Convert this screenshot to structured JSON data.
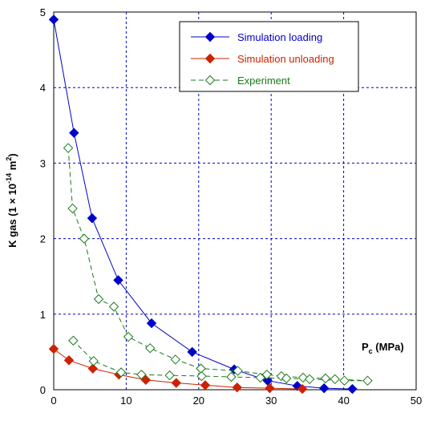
{
  "chart_data": {
    "type": "line",
    "x_axis": {
      "range": [
        0,
        50
      ],
      "ticks": [
        "0",
        "10",
        "20",
        "30",
        "40",
        "50"
      ],
      "label_main": "P",
      "label_sub": "c",
      "label_unit": " (MPa)"
    },
    "y_axis": {
      "range": [
        0,
        5
      ],
      "ticks": [
        "0",
        "1",
        "2",
        "3",
        "4",
        "5"
      ],
      "label_prefix": "K gas (1 × 10",
      "label_exp": "-14",
      "label_mid": " m",
      "label_exp2": "2",
      "label_suffix": ")"
    },
    "grid": true,
    "legend_position": "top-right",
    "series": [
      {
        "name": "Simulation loading",
        "color": "#0000cc",
        "marker": "diamond-filled",
        "line": "solid",
        "points": [
          [
            0,
            4.9
          ],
          [
            2.8,
            3.4
          ],
          [
            5.3,
            2.27
          ],
          [
            8.9,
            1.45
          ],
          [
            13.5,
            0.88
          ],
          [
            19.1,
            0.5
          ],
          [
            24.9,
            0.27
          ],
          [
            29.5,
            0.12
          ],
          [
            33.6,
            0.05
          ],
          [
            37.3,
            0.02
          ],
          [
            41.2,
            0.01
          ]
        ]
      },
      {
        "name": "Simulation unloading",
        "color": "#cc2200",
        "marker": "diamond-filled",
        "line": "solid",
        "points": [
          [
            0,
            0.54
          ],
          [
            2.1,
            0.39
          ],
          [
            5.4,
            0.28
          ],
          [
            9.0,
            0.2
          ],
          [
            12.7,
            0.13
          ],
          [
            16.9,
            0.09
          ],
          [
            20.9,
            0.06
          ],
          [
            25.3,
            0.03
          ],
          [
            29.8,
            0.02
          ],
          [
            34.3,
            0.01
          ]
        ]
      },
      {
        "name": "Experiment",
        "color": "#1a7a1a",
        "marker": "diamond-open",
        "line": "dashed",
        "points": [
          [
            2.0,
            3.2
          ],
          [
            2.6,
            2.4
          ],
          [
            4.2,
            2.0
          ],
          [
            6.2,
            1.2
          ],
          [
            8.3,
            1.1
          ],
          [
            10.3,
            0.7
          ],
          [
            13.3,
            0.55
          ],
          [
            16.8,
            0.4
          ],
          [
            20.3,
            0.28
          ],
          [
            25.4,
            0.25
          ],
          [
            29.4,
            0.2
          ],
          [
            31.4,
            0.18
          ],
          [
            34.4,
            0.16
          ],
          [
            37.5,
            0.15
          ],
          [
            38.8,
            0.14
          ],
          [
            43.3,
            0.12
          ],
          [
            40.1,
            0.12
          ],
          [
            35.3,
            0.14
          ],
          [
            32.1,
            0.15
          ],
          [
            28.5,
            0.16
          ],
          [
            24.5,
            0.17
          ],
          [
            20.4,
            0.18
          ],
          [
            16.0,
            0.19
          ],
          [
            12.1,
            0.2
          ],
          [
            9.3,
            0.23
          ],
          [
            5.5,
            0.38
          ],
          [
            2.7,
            0.65
          ]
        ]
      }
    ]
  }
}
